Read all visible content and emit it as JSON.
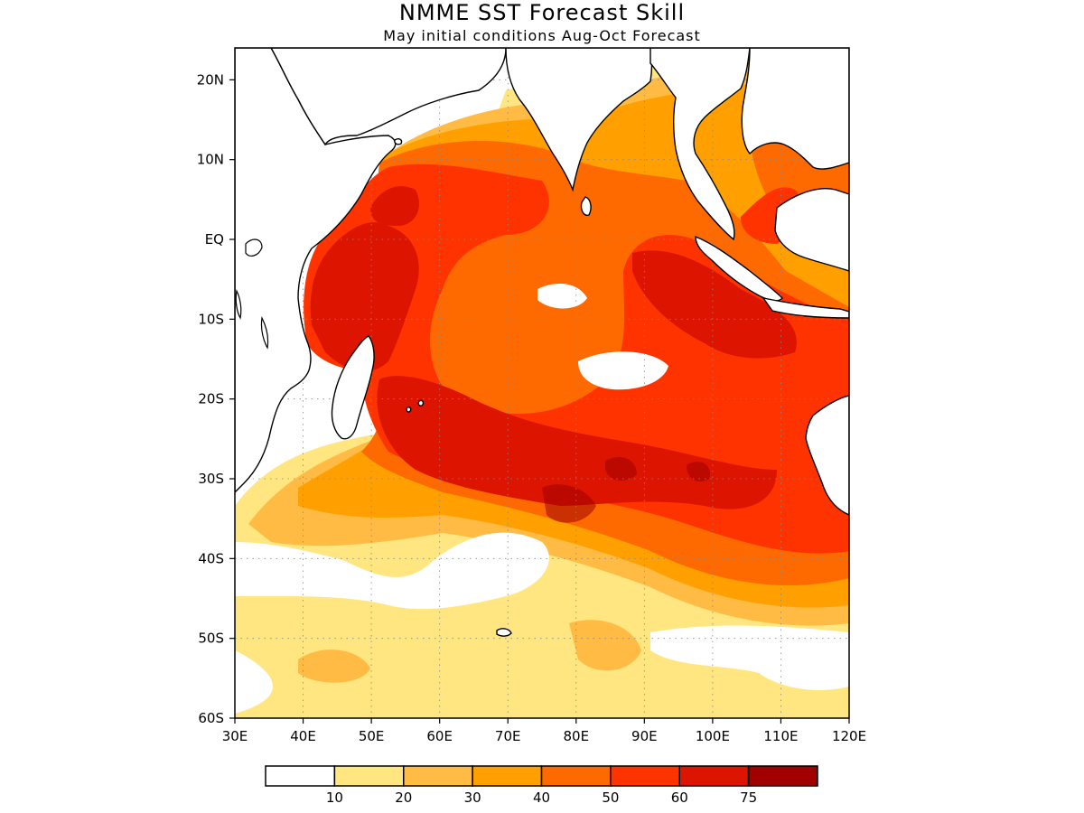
{
  "title": "NMME SST Forecast Skill",
  "subtitle": "May initial conditions  Aug-Oct Forecast",
  "map": {
    "lon_range": [
      30,
      120
    ],
    "lat_range": [
      -60,
      24
    ],
    "lon_ticks": [
      {
        "value": 30,
        "label": "30E"
      },
      {
        "value": 40,
        "label": "40E"
      },
      {
        "value": 50,
        "label": "50E"
      },
      {
        "value": 60,
        "label": "60E"
      },
      {
        "value": 70,
        "label": "70E"
      },
      {
        "value": 80,
        "label": "80E"
      },
      {
        "value": 90,
        "label": "90E"
      },
      {
        "value": 100,
        "label": "100E"
      },
      {
        "value": 110,
        "label": "110E"
      },
      {
        "value": 120,
        "label": "120E"
      }
    ],
    "lat_ticks": [
      {
        "value": 20,
        "label": "20N"
      },
      {
        "value": 10,
        "label": "10N"
      },
      {
        "value": 0,
        "label": "EQ"
      },
      {
        "value": -10,
        "label": "10S"
      },
      {
        "value": -20,
        "label": "20S"
      },
      {
        "value": -30,
        "label": "30S"
      },
      {
        "value": -40,
        "label": "40S"
      },
      {
        "value": -50,
        "label": "50S"
      },
      {
        "value": -60,
        "label": "60S"
      }
    ],
    "gridlines": true
  },
  "colorbar": {
    "bins": [
      {
        "color": "#ffffff"
      },
      {
        "color": "#ffe680"
      },
      {
        "color": "#ffbb44"
      },
      {
        "color": "#ffa000"
      },
      {
        "color": "#ff6a00"
      },
      {
        "color": "#ff3300"
      },
      {
        "color": "#dd1500"
      },
      {
        "color": "#a00000"
      }
    ],
    "labels": [
      "10",
      "20",
      "30",
      "40",
      "50",
      "60",
      "75"
    ]
  }
}
